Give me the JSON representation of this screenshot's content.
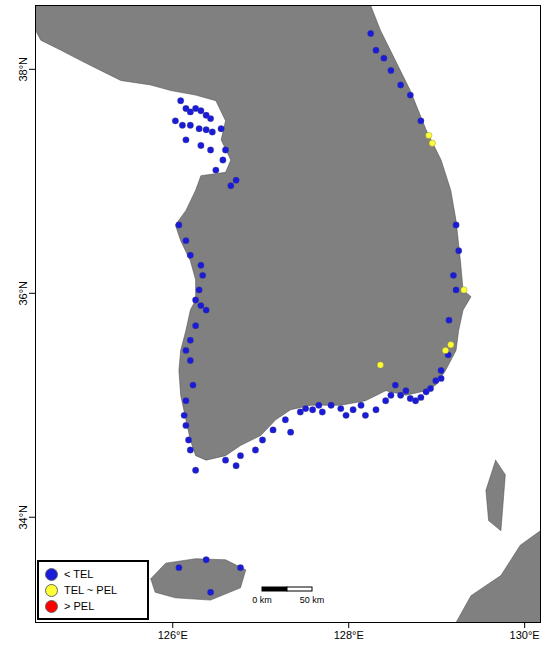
{
  "chart_data": {
    "type": "scatter",
    "xlim": [
      124.44,
      130.18
    ],
    "ylim": [
      33.06,
      38.57
    ],
    "xticks": [
      {
        "value": 126,
        "label": "126°E"
      },
      {
        "value": 128,
        "label": "128°E"
      },
      {
        "value": 130,
        "label": "130°E"
      }
    ],
    "yticks": [
      {
        "value": 34,
        "label": "34°N"
      },
      {
        "value": 36,
        "label": "36°N"
      },
      {
        "value": 38,
        "label": "38°N"
      }
    ],
    "legend": "lower left",
    "scale_bar": [
      "0 km",
      "50 km"
    ],
    "land": [
      [
        [
          124.44,
          38.57
        ],
        [
          128.25,
          38.57
        ],
        [
          128.36,
          38.35
        ],
        [
          128.53,
          38.08
        ],
        [
          128.7,
          37.81
        ],
        [
          128.88,
          37.46
        ],
        [
          129.05,
          37.19
        ],
        [
          129.16,
          36.92
        ],
        [
          129.22,
          36.65
        ],
        [
          129.27,
          36.29
        ],
        [
          129.3,
          36.03
        ],
        [
          129.39,
          35.97
        ],
        [
          129.3,
          35.85
        ],
        [
          129.25,
          35.67
        ],
        [
          129.22,
          35.49
        ],
        [
          129.1,
          35.31
        ],
        [
          128.99,
          35.18
        ],
        [
          128.88,
          35.13
        ],
        [
          128.65,
          35.09
        ],
        [
          128.42,
          35.13
        ],
        [
          128.19,
          35.04
        ],
        [
          127.91,
          35.0
        ],
        [
          127.57,
          35.0
        ],
        [
          127.34,
          34.96
        ],
        [
          127.17,
          34.87
        ],
        [
          127.0,
          34.73
        ],
        [
          126.77,
          34.64
        ],
        [
          126.6,
          34.55
        ],
        [
          126.38,
          34.51
        ],
        [
          126.26,
          34.55
        ],
        [
          126.2,
          34.69
        ],
        [
          126.15,
          34.87
        ],
        [
          126.09,
          35.09
        ],
        [
          126.07,
          35.31
        ],
        [
          126.09,
          35.49
        ],
        [
          126.15,
          35.67
        ],
        [
          126.2,
          35.85
        ],
        [
          126.26,
          35.94
        ],
        [
          126.26,
          36.12
        ],
        [
          126.2,
          36.29
        ],
        [
          126.09,
          36.47
        ],
        [
          126.03,
          36.61
        ],
        [
          126.15,
          36.74
        ],
        [
          126.26,
          36.92
        ],
        [
          126.32,
          37.05
        ],
        [
          126.6,
          37.08
        ],
        [
          126.66,
          37.19
        ],
        [
          126.55,
          37.37
        ],
        [
          126.6,
          37.54
        ],
        [
          126.49,
          37.72
        ],
        [
          126.26,
          37.77
        ],
        [
          125.98,
          37.81
        ],
        [
          125.75,
          37.86
        ],
        [
          125.41,
          37.9
        ],
        [
          125.18,
          37.99
        ],
        [
          124.95,
          38.08
        ],
        [
          124.73,
          38.17
        ],
        [
          124.5,
          38.26
        ],
        [
          124.44,
          38.35
        ]
      ],
      [
        [
          125.75,
          33.45
        ],
        [
          125.92,
          33.59
        ],
        [
          126.26,
          33.63
        ],
        [
          126.6,
          33.62
        ],
        [
          126.83,
          33.53
        ],
        [
          126.77,
          33.37
        ],
        [
          126.43,
          33.26
        ],
        [
          126.03,
          33.28
        ],
        [
          125.8,
          33.33
        ]
      ],
      [
        [
          129.67,
          34.51
        ],
        [
          129.78,
          34.38
        ],
        [
          129.73,
          33.88
        ],
        [
          129.59,
          33.97
        ],
        [
          129.56,
          34.24
        ]
      ],
      [
        [
          129.22,
          33.06
        ],
        [
          129.39,
          33.3
        ],
        [
          129.73,
          33.48
        ],
        [
          129.95,
          33.75
        ],
        [
          130.18,
          33.88
        ],
        [
          130.18,
          33.06
        ]
      ]
    ],
    "series": [
      {
        "name": "< TEL",
        "color": "#1a1adb",
        "values": [
          [
            128.25,
            38.32
          ],
          [
            128.31,
            38.17
          ],
          [
            128.4,
            38.1
          ],
          [
            128.48,
            37.99
          ],
          [
            128.59,
            37.86
          ],
          [
            128.7,
            37.77
          ],
          [
            128.82,
            37.54
          ],
          [
            129.22,
            36.61
          ],
          [
            129.25,
            36.38
          ],
          [
            129.19,
            36.16
          ],
          [
            129.22,
            36.03
          ],
          [
            129.14,
            35.76
          ],
          [
            129.13,
            35.45
          ],
          [
            129.05,
            35.31
          ],
          [
            126.09,
            37.72
          ],
          [
            126.15,
            37.65
          ],
          [
            126.2,
            37.62
          ],
          [
            126.26,
            37.65
          ],
          [
            126.32,
            37.63
          ],
          [
            126.38,
            37.59
          ],
          [
            126.43,
            37.56
          ],
          [
            126.03,
            37.54
          ],
          [
            126.11,
            37.5
          ],
          [
            126.2,
            37.5
          ],
          [
            126.3,
            37.47
          ],
          [
            126.38,
            37.46
          ],
          [
            126.45,
            37.44
          ],
          [
            126.55,
            37.47
          ],
          [
            126.15,
            37.37
          ],
          [
            126.32,
            37.32
          ],
          [
            126.43,
            37.28
          ],
          [
            126.6,
            37.28
          ],
          [
            126.57,
            37.19
          ],
          [
            126.49,
            37.1
          ],
          [
            126.66,
            36.96
          ],
          [
            126.72,
            37.01
          ],
          [
            126.07,
            36.61
          ],
          [
            126.15,
            36.47
          ],
          [
            126.2,
            36.34
          ],
          [
            126.32,
            36.25
          ],
          [
            126.34,
            36.16
          ],
          [
            126.3,
            36.03
          ],
          [
            126.26,
            35.94
          ],
          [
            126.32,
            35.89
          ],
          [
            126.38,
            35.85
          ],
          [
            126.26,
            35.71
          ],
          [
            126.2,
            35.58
          ],
          [
            126.15,
            35.49
          ],
          [
            126.2,
            35.4
          ],
          [
            126.23,
            35.18
          ],
          [
            126.15,
            35.04
          ],
          [
            126.13,
            34.91
          ],
          [
            126.15,
            34.82
          ],
          [
            126.18,
            34.69
          ],
          [
            126.2,
            34.6
          ],
          [
            126.26,
            34.42
          ],
          [
            126.6,
            34.51
          ],
          [
            126.72,
            34.46
          ],
          [
            126.77,
            34.55
          ],
          [
            126.94,
            34.6
          ],
          [
            127.02,
            34.69
          ],
          [
            127.14,
            34.78
          ],
          [
            127.28,
            34.87
          ],
          [
            127.34,
            34.76
          ],
          [
            127.45,
            34.94
          ],
          [
            127.51,
            34.97
          ],
          [
            127.59,
            34.96
          ],
          [
            127.66,
            35.0
          ],
          [
            127.7,
            34.94
          ],
          [
            127.8,
            35.0
          ],
          [
            127.91,
            34.97
          ],
          [
            127.97,
            34.91
          ],
          [
            128.05,
            34.96
          ],
          [
            128.14,
            35.0
          ],
          [
            128.19,
            34.91
          ],
          [
            128.31,
            34.96
          ],
          [
            128.42,
            35.04
          ],
          [
            128.48,
            35.09
          ],
          [
            128.59,
            35.09
          ],
          [
            128.7,
            35.06
          ],
          [
            128.76,
            35.04
          ],
          [
            128.82,
            35.07
          ],
          [
            128.88,
            35.12
          ],
          [
            128.93,
            35.15
          ],
          [
            128.99,
            35.22
          ],
          [
            129.05,
            35.24
          ],
          [
            128.53,
            35.18
          ],
          [
            128.65,
            35.13
          ],
          [
            126.07,
            33.55
          ],
          [
            126.38,
            33.62
          ],
          [
            126.43,
            33.33
          ],
          [
            126.77,
            33.55
          ]
        ]
      },
      {
        "name": "TEL ~ PEL",
        "color": "#ffff33",
        "values": [
          [
            128.91,
            37.41
          ],
          [
            128.95,
            37.34
          ],
          [
            129.31,
            36.03
          ],
          [
            129.16,
            35.54
          ],
          [
            129.1,
            35.49
          ],
          [
            128.36,
            35.36
          ]
        ]
      },
      {
        "name": "> PEL",
        "color": "#ff0000",
        "values": []
      }
    ]
  }
}
